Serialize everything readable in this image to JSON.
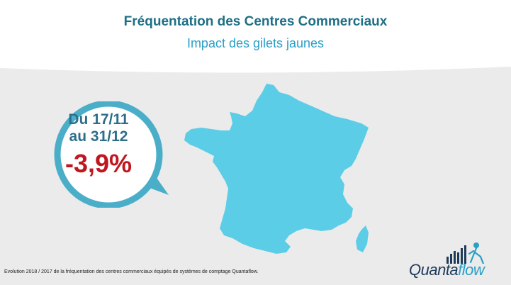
{
  "header": {
    "title": "Fréquentation des Centres Commerciaux",
    "subtitle": "Impact des gilets jaunes"
  },
  "callout": {
    "date_line1": "Du 17/11",
    "date_line2": "au 31/12",
    "percent": "-3,9%"
  },
  "footnote": "Evolution 2018 / 2017 de la fréquentation des centres commerciaux équipés de systèmes de comptage Quantaflow.",
  "logo": {
    "part1": "Quanta",
    "part2": "flow"
  },
  "colors": {
    "title": "#1e6f86",
    "subtitle": "#2a9fc7",
    "map": "#5bcde6",
    "bubble_ring": "#4aaec9",
    "percent": "#c0161f",
    "background": "#ebebeb"
  },
  "icons": [
    "france-map",
    "speech-bubble",
    "quantaflow-logo-bars"
  ]
}
